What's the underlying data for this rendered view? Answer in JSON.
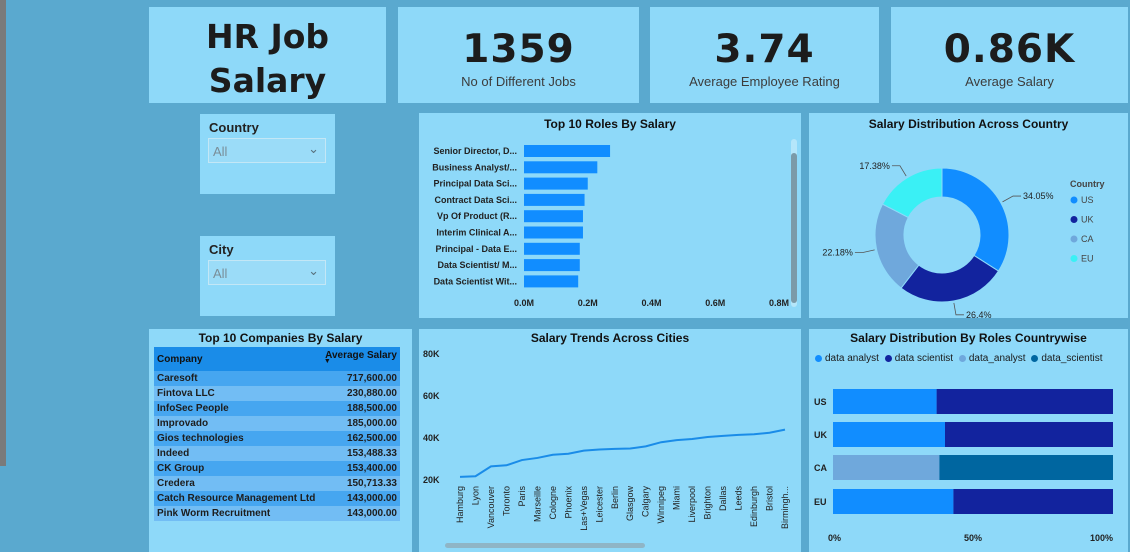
{
  "header": {
    "title": "HR Job Salary Analysis"
  },
  "kpis": [
    {
      "value": "1359",
      "label": "No of Different Jobs"
    },
    {
      "value": "3.74",
      "label": "Average Employee Rating"
    },
    {
      "value": "0.86K",
      "label": "Average Salary"
    }
  ],
  "filters": {
    "country": {
      "label": "Country",
      "value": "All"
    },
    "city": {
      "label": "City",
      "value": "All"
    }
  },
  "colors": {
    "us": "#118DFF",
    "uk": "#12239E",
    "ca": "#6FA8DC",
    "eu": "#3AF0F5",
    "data_scientist_ca": "#0066A0",
    "line": "#1a8ce8",
    "card": "#8ed9f9"
  },
  "roles_chart": {
    "title": "Top 10 Roles By Salary",
    "labels": [
      "Senior Director, D...",
      "Business Analyst/...",
      "Principal Data Sci...",
      "Contract Data Sci...",
      "Vp Of Product (R...",
      "Interim Clinical A...",
      "Principal - Data E...",
      "Data Scientist/ M...",
      "Data Scientist Wit..."
    ],
    "ticks": [
      "0.0M",
      "0.2M",
      "0.4M",
      "0.6M",
      "0.8M"
    ]
  },
  "country_chart": {
    "title": "Salary Distribution Across Country",
    "legend_title": "Country",
    "labels": [
      "US",
      "UK",
      "CA",
      "EU"
    ],
    "pct_labels": [
      "34.05%",
      "26.4%",
      "22.18%",
      "17.38%"
    ]
  },
  "companies_table": {
    "title": "Top 10 Companies By Salary",
    "columns": [
      "Company",
      "Average Salary"
    ],
    "rows": [
      [
        "Caresoft",
        "717,600.00"
      ],
      [
        "Fintova LLC",
        "230,880.00"
      ],
      [
        "InfoSec People",
        "188,500.00"
      ],
      [
        "Improvado",
        "185,000.00"
      ],
      [
        "Gios technologies",
        "162,500.00"
      ],
      [
        "Indeed",
        "153,488.33"
      ],
      [
        "CK Group",
        "153,400.00"
      ],
      [
        "Credera",
        "150,713.33"
      ],
      [
        "Catch Resource Management Ltd",
        "143,000.00"
      ],
      [
        "Pink Worm Recruitment",
        "143,000.00"
      ]
    ]
  },
  "cities_chart": {
    "title": "Salary Trends Across Cities",
    "ticks": [
      "80K",
      "60K",
      "40K",
      "20K"
    ]
  },
  "roles_country_chart": {
    "title": "Salary Distribution By Roles Countrywise",
    "legend": [
      "data analyst",
      "data scientist",
      "data_analyst",
      "data_scientist"
    ],
    "ticks": [
      "0%",
      "50%",
      "100%"
    ]
  },
  "chart_data": [
    {
      "type": "bar",
      "orientation": "horizontal",
      "title": "Top 10 Roles By Salary",
      "categories": [
        "Senior Director, D...",
        "Business Analyst/...",
        "Principal Data Sci...",
        "Contract Data Sci...",
        "Vp Of Product (R...",
        "Interim Clinical A...",
        "Principal - Data E...",
        "Data Scientist/ M...",
        "Data Scientist Wit..."
      ],
      "values": [
        0.27,
        0.23,
        0.2,
        0.19,
        0.185,
        0.185,
        0.175,
        0.175,
        0.17
      ],
      "xlim": [
        0,
        0.8
      ]
    },
    {
      "type": "pie",
      "title": "Salary Distribution Across Country",
      "categories": [
        "US",
        "UK",
        "CA",
        "EU"
      ],
      "values": [
        34.05,
        26.4,
        22.18,
        17.38
      ]
    },
    {
      "type": "line",
      "title": "Salary Trends Across Cities",
      "categories": [
        "Hamburg",
        "Lyon",
        "Vancouver",
        "Toronto",
        "Paris",
        "Marseille",
        "Cologne",
        "Phoenix",
        "Las+Vegas",
        "Leicester",
        "Berlin",
        "Glasgow",
        "Calgary",
        "Winnipeg",
        "Miami",
        "Liverpool",
        "Brighton",
        "Dallas",
        "Leeds",
        "Edinburgh",
        "Bristol",
        "Birmingh..."
      ],
      "values": [
        21500,
        21800,
        26500,
        27000,
        29500,
        30500,
        32000,
        32500,
        34000,
        34500,
        34800,
        35000,
        36000,
        38000,
        39000,
        39500,
        40500,
        41000,
        41500,
        41800,
        42500,
        44000
      ],
      "ylim": [
        20000,
        80000
      ]
    },
    {
      "type": "bar",
      "orientation": "horizontal",
      "stacked": "100%",
      "title": "Salary Distribution By Roles Countrywise",
      "categories": [
        "US",
        "UK",
        "CA",
        "EU"
      ],
      "series": [
        {
          "name": "data analyst",
          "values": [
            37,
            40,
            0,
            43
          ]
        },
        {
          "name": "data scientist",
          "values": [
            63,
            60,
            0,
            57
          ]
        },
        {
          "name": "data_analyst",
          "values": [
            0,
            0,
            38,
            0
          ]
        },
        {
          "name": "data_scientist",
          "values": [
            0,
            0,
            62,
            0
          ]
        }
      ],
      "xlim": [
        0,
        100
      ]
    }
  ]
}
